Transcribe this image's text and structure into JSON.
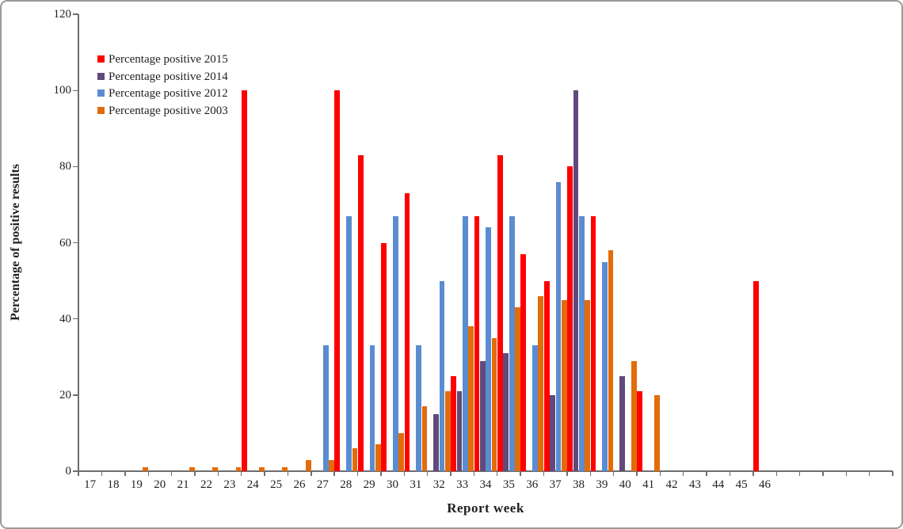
{
  "chart_data": {
    "type": "bar",
    "title": "",
    "xlabel": "Report week",
    "ylabel": "Percentage of positive results",
    "ylim": [
      0,
      120
    ],
    "ytick_step": 20,
    "grid": false,
    "legend_position": "inside-upper-left",
    "categories": [
      17,
      18,
      19,
      20,
      21,
      22,
      23,
      24,
      25,
      26,
      27,
      28,
      29,
      30,
      31,
      32,
      33,
      34,
      35,
      36,
      37,
      38,
      39,
      40,
      41,
      42,
      43,
      44,
      45,
      46
    ],
    "unlabeled_extra_slots": 5,
    "series": [
      {
        "name": "Percentage positive 2015",
        "color": "#FF0000",
        "values": [
          0,
          0,
          0,
          0,
          0,
          0,
          0,
          100,
          0,
          0,
          0,
          100,
          83,
          60,
          73,
          0,
          25,
          67,
          83,
          57,
          50,
          80,
          67,
          0,
          21,
          0,
          0,
          0,
          0,
          50
        ]
      },
      {
        "name": "Percentage positive 2014",
        "color": "#604A7B",
        "values": [
          0,
          0,
          0,
          0,
          0,
          0,
          0,
          0,
          0,
          0,
          0,
          0,
          0,
          0,
          0,
          15,
          21,
          29,
          31,
          0,
          20,
          100,
          0,
          25,
          0,
          0,
          0,
          0,
          0,
          0
        ]
      },
      {
        "name": "Percentage positive 2012",
        "color": "#5B8CD0",
        "values": [
          0,
          0,
          0,
          0,
          0,
          0,
          0,
          0,
          0,
          0,
          33,
          67,
          33,
          67,
          33,
          50,
          67,
          64,
          67,
          33,
          76,
          67,
          55,
          0,
          0,
          0,
          0,
          0,
          0,
          0
        ]
      },
      {
        "name": "Percentage positive 2003",
        "color": "#E36C0A",
        "values": [
          0,
          0,
          1,
          0,
          1,
          1,
          1,
          1,
          1,
          3,
          3,
          6,
          7,
          10,
          17,
          21,
          38,
          35,
          43,
          46,
          45,
          45,
          58,
          29,
          20,
          0,
          0,
          0,
          0,
          0
        ]
      }
    ]
  },
  "colors": {
    "axis_line": "#6E6E6E",
    "text": "#1F1F1F",
    "border": "#9A9A9A",
    "background": "#FFFFFF"
  }
}
